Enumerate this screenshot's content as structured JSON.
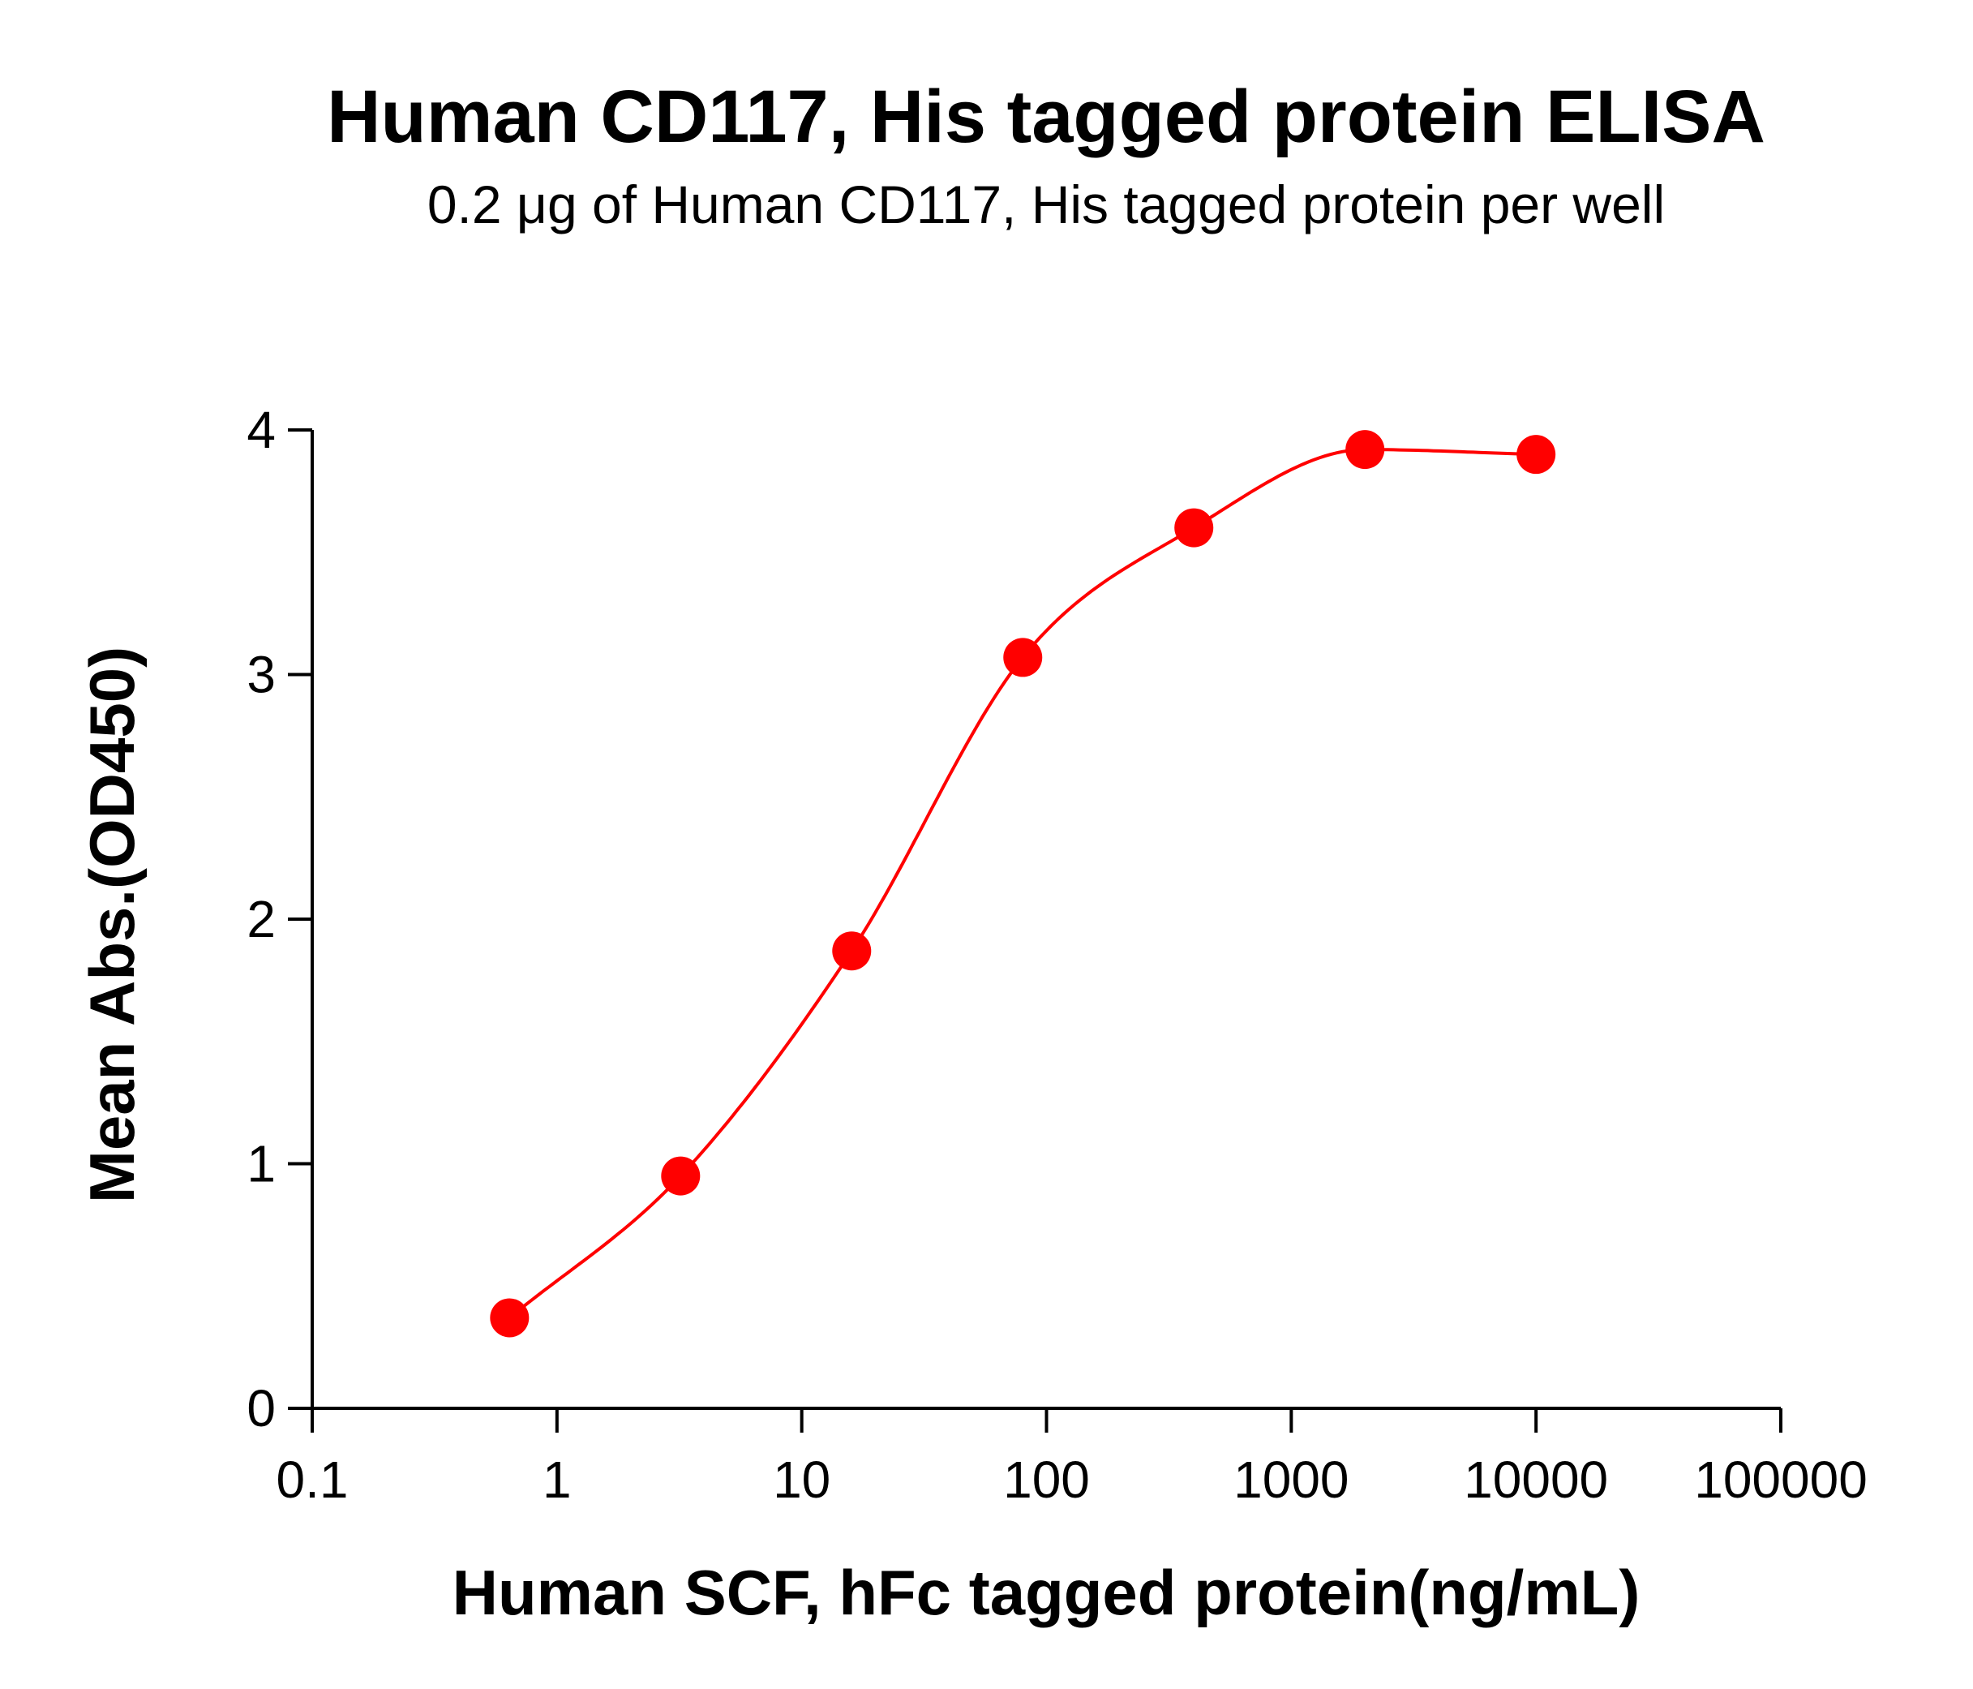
{
  "chart_data": {
    "type": "scatter",
    "title": "Human CD117, His tagged protein ELISA",
    "subtitle": "0.2 μg of Human CD117, His tagged protein per well",
    "xlabel": "Human SCF, hFc tagged protein(ng/mL)",
    "ylabel": "Mean Abs.(OD450)",
    "x_scale": "log",
    "xlim": [
      0.1,
      100000
    ],
    "ylim": [
      0,
      4
    ],
    "x_ticks": [
      "0.1",
      "1",
      "10",
      "100",
      "1000",
      "10000",
      "100000"
    ],
    "y_ticks": [
      "0",
      "1",
      "2",
      "3",
      "4"
    ],
    "grid": false,
    "fit_curve": true,
    "color": "#ff0000",
    "points": [
      {
        "x": 0.64,
        "y": 0.37
      },
      {
        "x": 3.2,
        "y": 0.95
      },
      {
        "x": 16,
        "y": 1.87
      },
      {
        "x": 80,
        "y": 3.07
      },
      {
        "x": 400,
        "y": 3.6
      },
      {
        "x": 2000,
        "y": 3.92
      },
      {
        "x": 10000,
        "y": 3.9
      }
    ]
  }
}
